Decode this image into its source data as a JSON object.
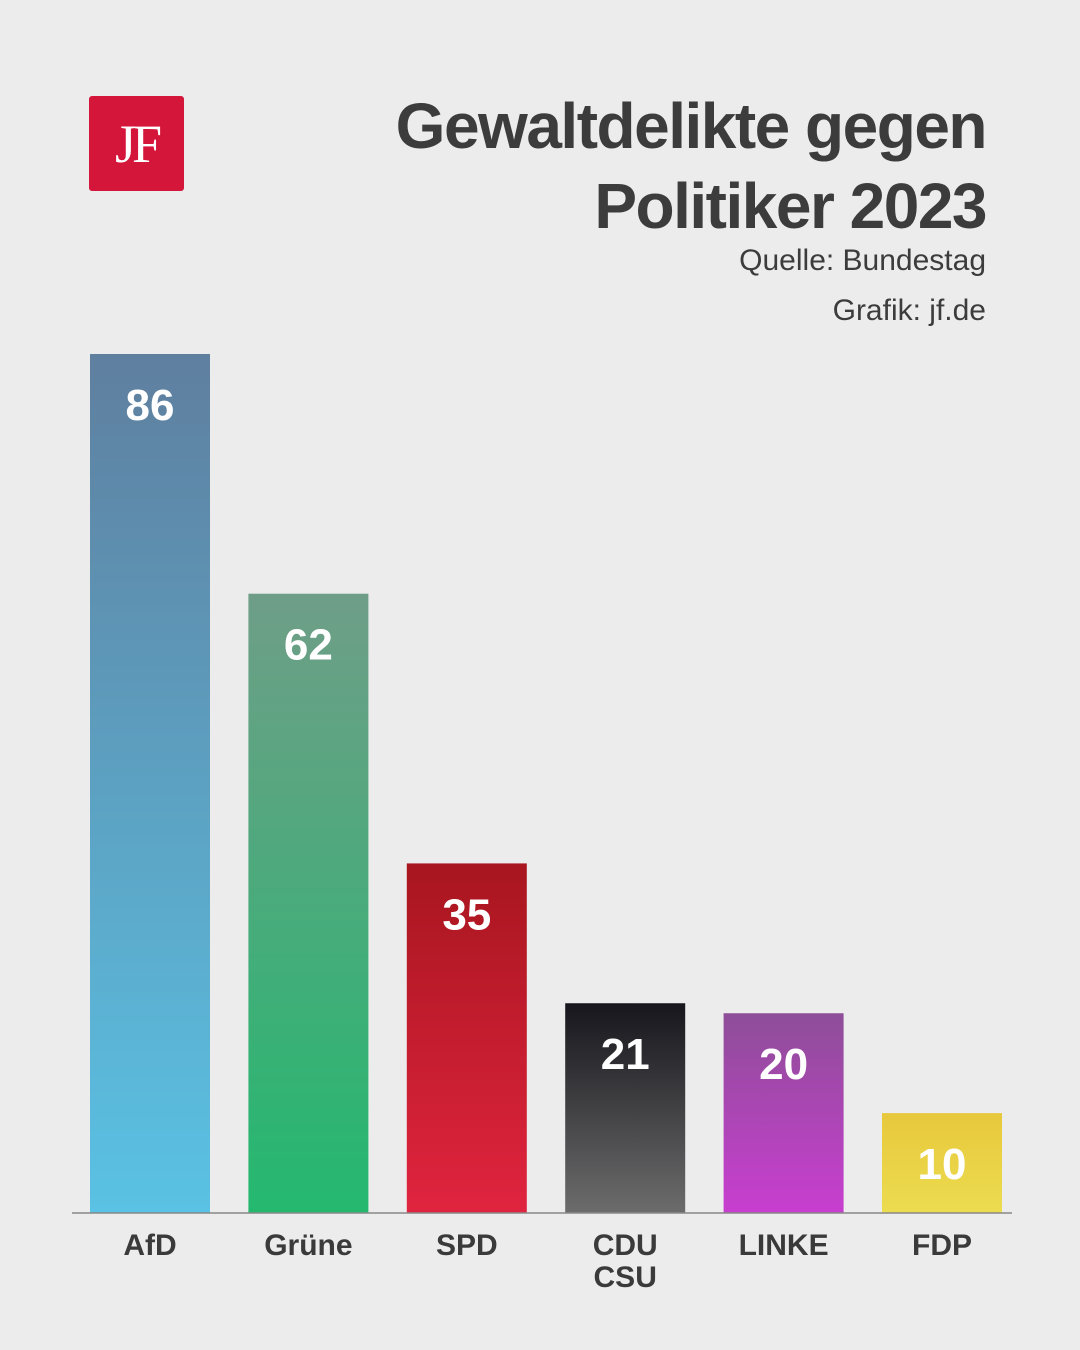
{
  "logo": {
    "text": "JF"
  },
  "header": {
    "title_line1": "Gewaltdelikte gegen",
    "title_line2": "Politiker 2023",
    "source": "Quelle: Bundestag",
    "credit": "Grafik: jf.de"
  },
  "chart_data": {
    "type": "bar",
    "title": "Gewaltdelikte gegen Politiker 2023",
    "xlabel": "",
    "ylabel": "",
    "ylim": [
      0,
      86
    ],
    "grid": false,
    "categories": [
      {
        "lines": [
          "AfD"
        ]
      },
      {
        "lines": [
          "Grüne"
        ]
      },
      {
        "lines": [
          "SPD"
        ]
      },
      {
        "lines": [
          "CDU",
          "CSU"
        ]
      },
      {
        "lines": [
          "LINKE"
        ]
      },
      {
        "lines": [
          "FDP"
        ]
      }
    ],
    "values": [
      86,
      62,
      35,
      21,
      20,
      10
    ],
    "colors": [
      {
        "top": "#5f7f9f",
        "bottom": "#5ac2e4"
      },
      {
        "top": "#6f9e88",
        "bottom": "#24b86f"
      },
      {
        "top": "#a8161f",
        "bottom": "#e0243f"
      },
      {
        "top": "#16161c",
        "bottom": "#6c6c6c"
      },
      {
        "top": "#8e4e98",
        "bottom": "#c83ed0"
      },
      {
        "top": "#e8c83c",
        "bottom": "#ecdc50"
      }
    ],
    "label_color": "#ffffff",
    "axis_color": "#888888"
  }
}
